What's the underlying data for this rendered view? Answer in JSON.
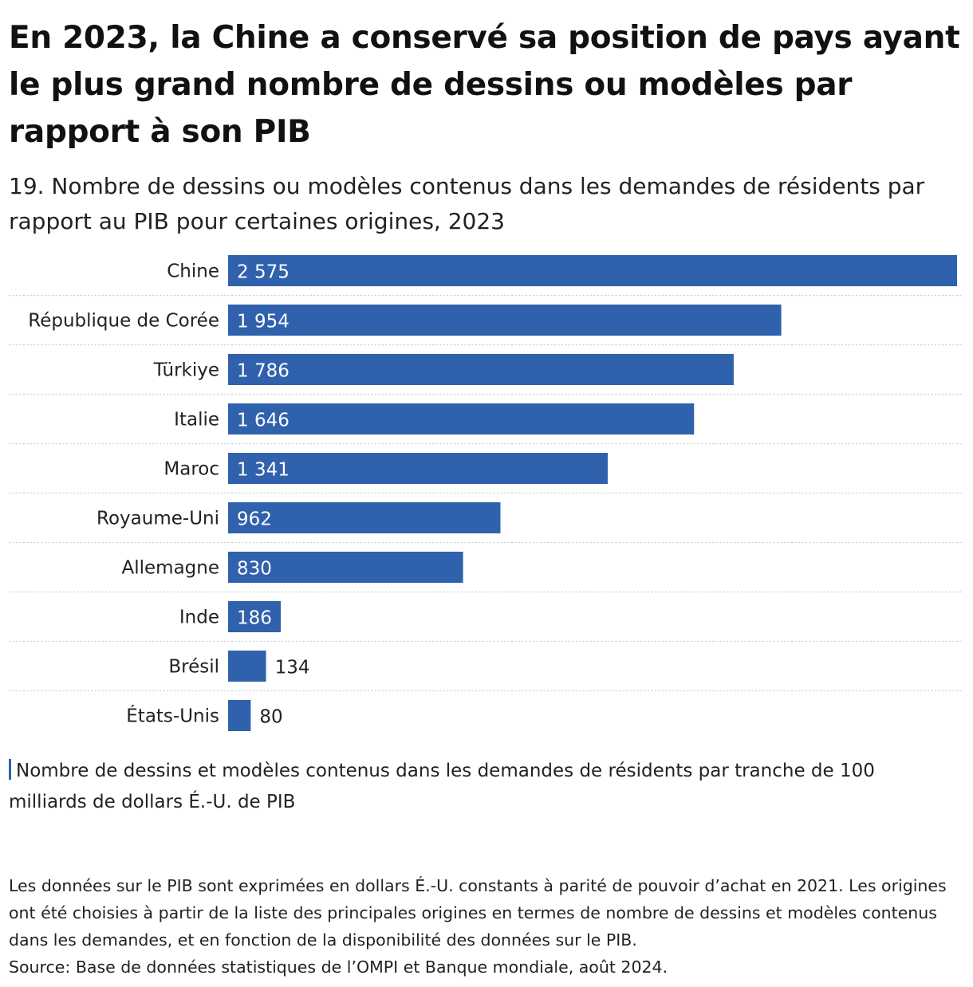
{
  "title": "En 2023, la Chine a conservé sa position de pays ayant le plus grand nombre de dessins ou modèles par rapport à son PIB",
  "subtitle": "19. Nombre de dessins ou modèles contenus dans les demandes de résidents par rapport au PIB pour certaines origines, 2023",
  "legend": {
    "label": "Nombre de dessins et modèles contenus dans les demandes de résidents par tranche de 100 milliards de dollars É.-U. de PIB"
  },
  "notes": {
    "text": "Les données sur le PIB sont exprimées en dollars É.-U. constants à parité de pouvoir d’achat en 2021. Les origines ont été choisies à partir de la liste des principales origines en termes de nombre de dessins et modèles contenus dans les demandes, et en fonction de la disponibilité des données sur le PIB.",
    "source": "Source: Base de données statistiques de l’OMPI et Banque mondiale, août 2024."
  },
  "colors": {
    "bar": "#3061ad",
    "grid": "#cccccc"
  },
  "chart_data": {
    "type": "bar",
    "orientation": "horizontal",
    "categories": [
      "Chine",
      "République de Corée",
      "Türkiye",
      "Italie",
      "Maroc",
      "Royaume-Uni",
      "Allemagne",
      "Inde",
      "Brésil",
      "États-Unis"
    ],
    "values": [
      2575,
      1954,
      1786,
      1646,
      1341,
      962,
      830,
      186,
      134,
      80
    ],
    "value_labels": [
      "2 575",
      "1 954",
      "1 786",
      "1 646",
      "1 341",
      "962",
      "830",
      "186",
      "134",
      "80"
    ],
    "xlim": [
      0,
      2575
    ],
    "grid": false
  }
}
